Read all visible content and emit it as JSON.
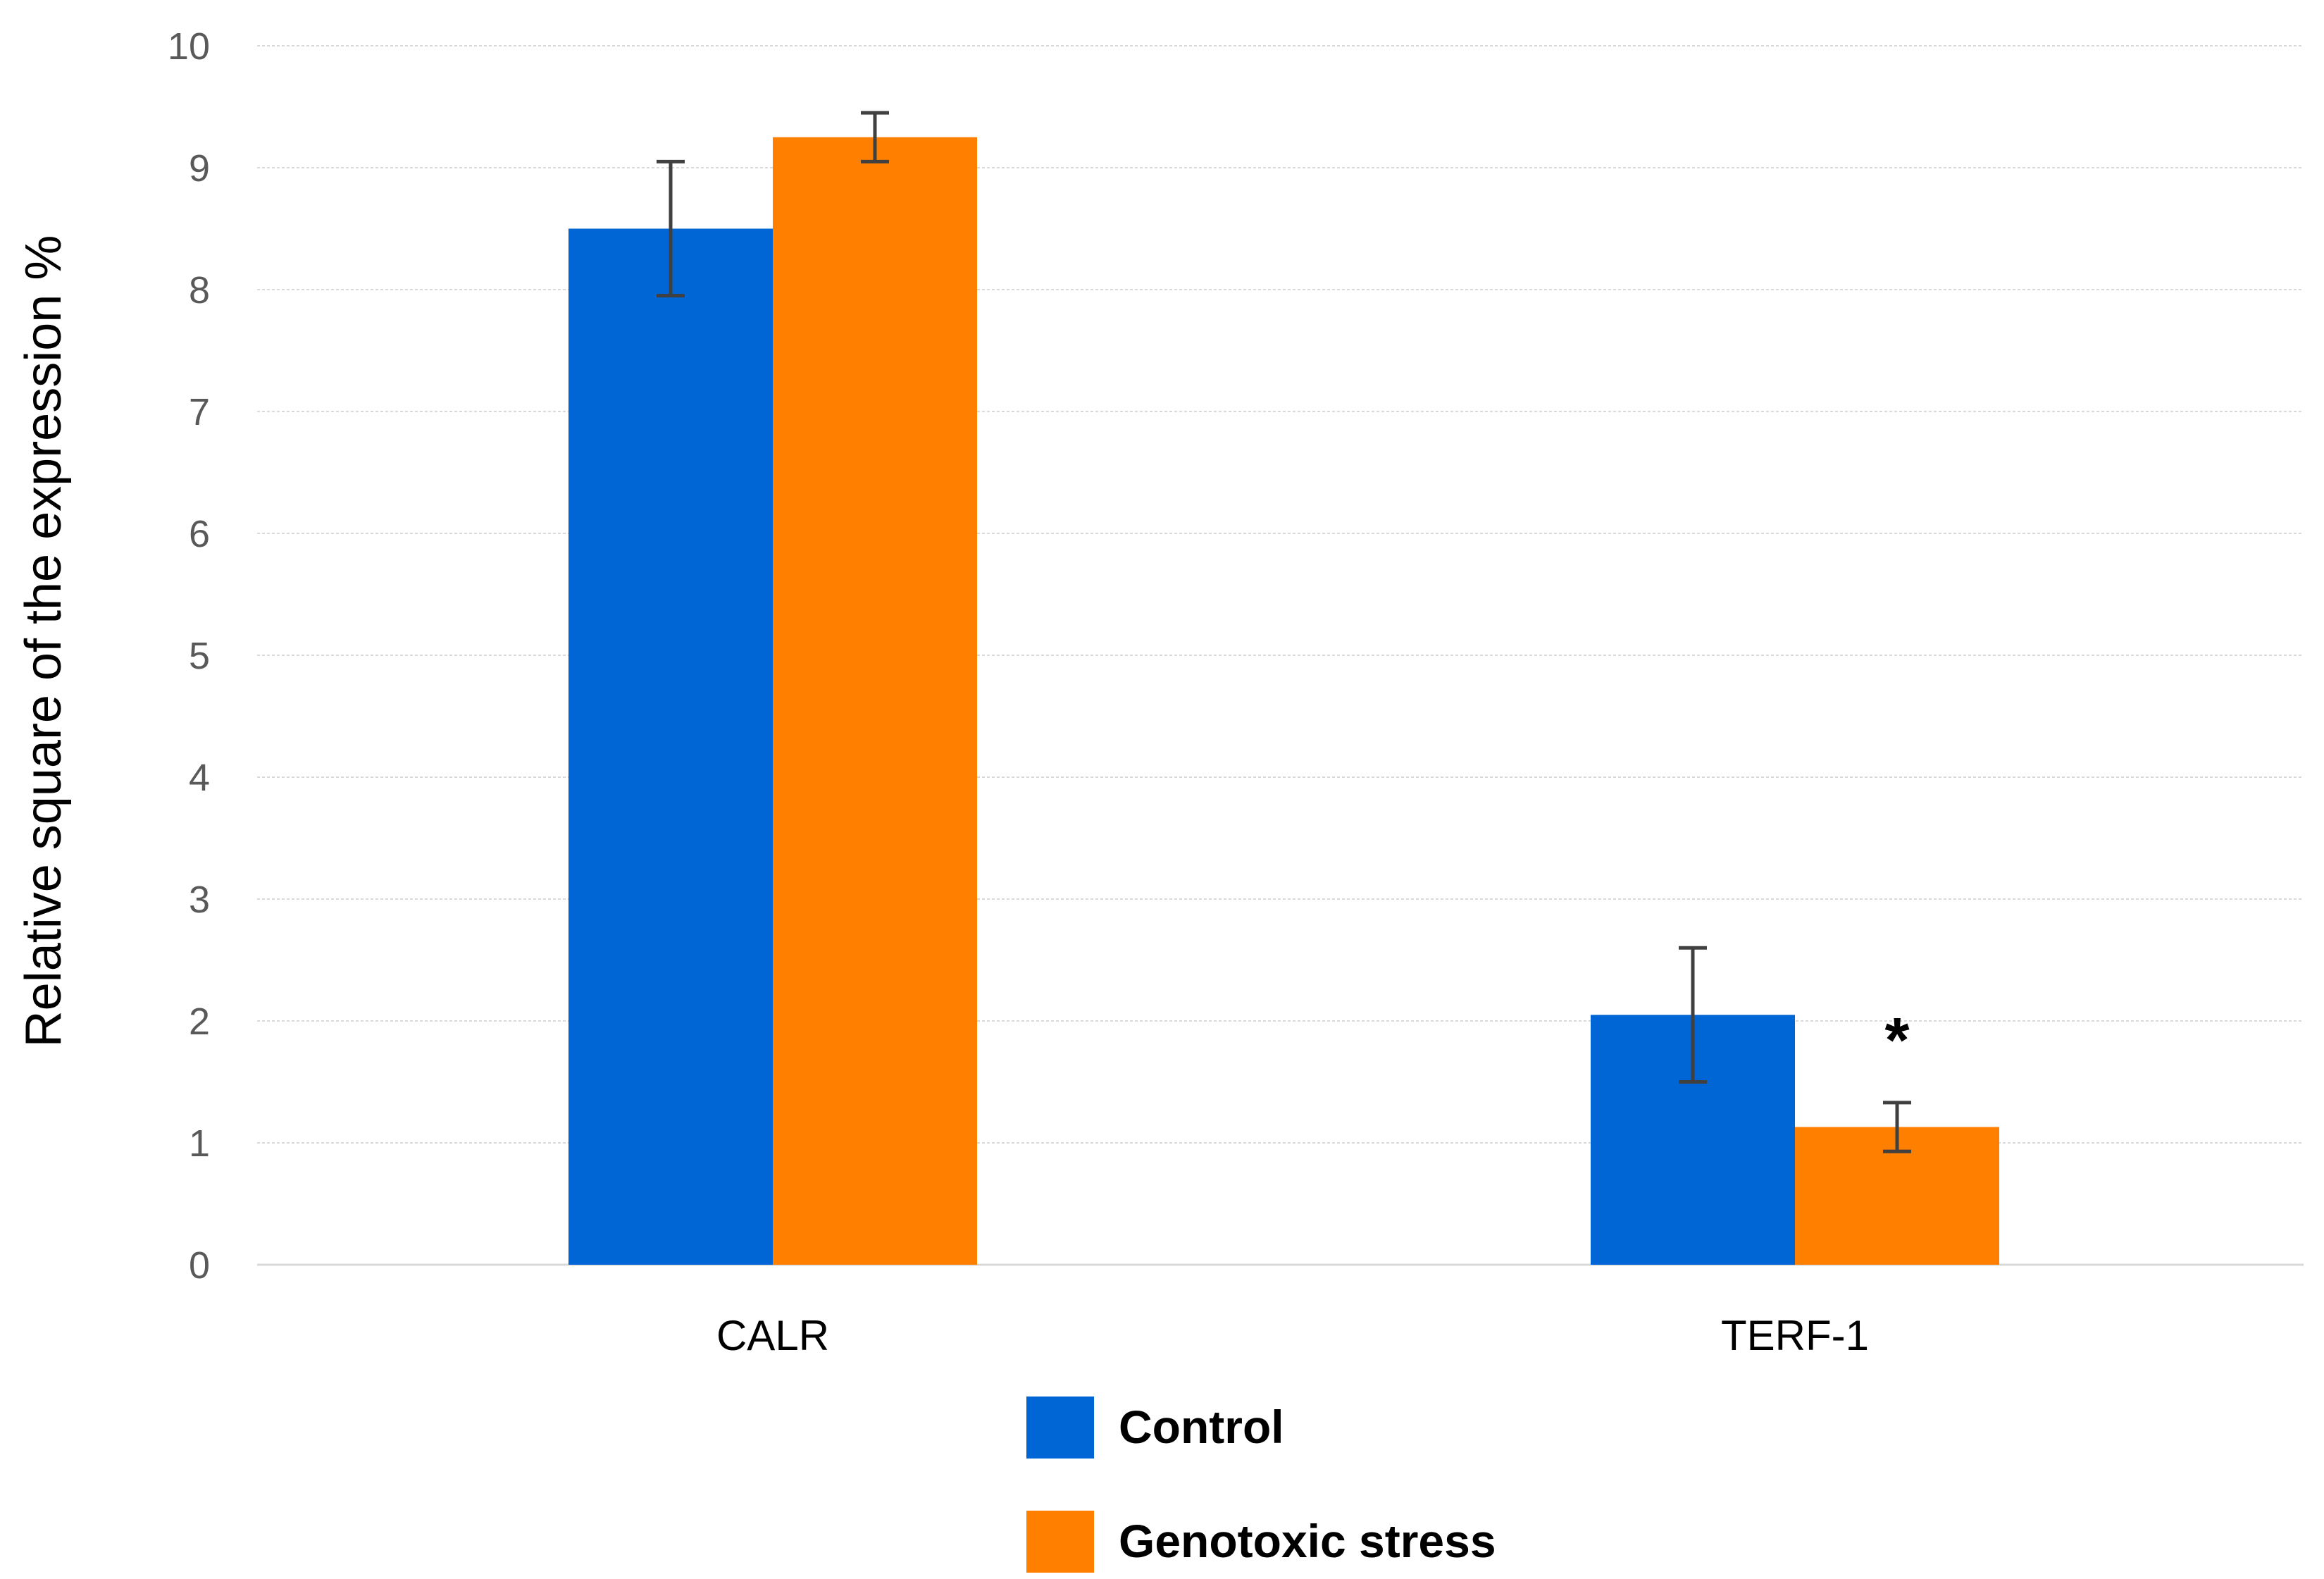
{
  "chart_data": {
    "type": "bar",
    "title": "",
    "xlabel": "",
    "ylabel": "Relative square of the expression   %",
    "ylim": [
      0,
      10
    ],
    "yticks": [
      0,
      1,
      2,
      3,
      4,
      5,
      6,
      7,
      8,
      9,
      10
    ],
    "categories": [
      "CALR",
      "TERF-1"
    ],
    "series": [
      {
        "name": "Control",
        "color": "#0066d6",
        "values": [
          8.5,
          2.05
        ],
        "errors": [
          0.55,
          0.55
        ]
      },
      {
        "name": "Genotoxic stress",
        "color": "#ff7f00",
        "values": [
          9.25,
          1.13
        ],
        "errors": [
          0.2,
          0.2
        ]
      }
    ],
    "annotations": [
      {
        "text": "*",
        "category": "TERF-1",
        "series": "Genotoxic stress",
        "y": 2.0
      }
    ],
    "grid": true,
    "legend": "bottom-center"
  }
}
